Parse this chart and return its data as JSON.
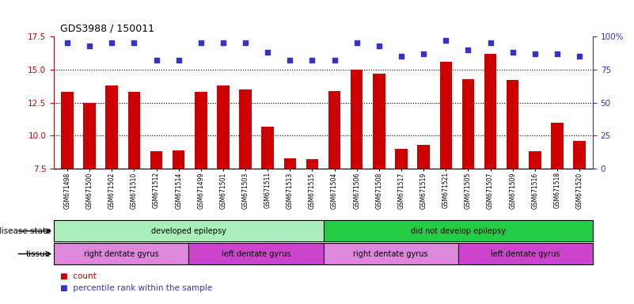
{
  "title": "GDS3988 / 150011",
  "samples": [
    "GSM671498",
    "GSM671500",
    "GSM671502",
    "GSM671510",
    "GSM671512",
    "GSM671514",
    "GSM671499",
    "GSM671501",
    "GSM671503",
    "GSM671511",
    "GSM671513",
    "GSM671515",
    "GSM671504",
    "GSM671506",
    "GSM671508",
    "GSM671517",
    "GSM671519",
    "GSM671521",
    "GSM671505",
    "GSM671507",
    "GSM671509",
    "GSM671516",
    "GSM671518",
    "GSM671520"
  ],
  "bar_values_left": [
    13.3,
    12.5,
    13.8,
    13.3,
    8.8,
    8.9,
    13.3,
    13.8,
    13.5,
    10.7,
    8.3,
    8.2,
    13.4,
    15.0,
    14.7,
    9.0,
    9.3,
    15.6,
    14.3,
    16.2,
    14.2,
    8.8,
    11.0,
    9.6
  ],
  "percentile_right": [
    95,
    93,
    95,
    95,
    82,
    82,
    95,
    95,
    95,
    88,
    82,
    82,
    82,
    95,
    93,
    85,
    87,
    97,
    90,
    95,
    88,
    87,
    87,
    85
  ],
  "ylim_left": [
    7.5,
    17.5
  ],
  "ylim_right": [
    0,
    100
  ],
  "yticks_left": [
    7.5,
    10.0,
    12.5,
    15.0,
    17.5
  ],
  "yticks_right": [
    0,
    25,
    50,
    75,
    100
  ],
  "bar_color": "#cc0000",
  "dot_color": "#3333cc",
  "disease_state_groups": [
    {
      "label": "developed epilepsy",
      "start": 0,
      "end": 12,
      "color": "#aaeebb"
    },
    {
      "label": "did not develop epilepsy",
      "start": 12,
      "end": 24,
      "color": "#22cc44"
    }
  ],
  "tissue_groups": [
    {
      "label": "right dentate gyrus",
      "start": 0,
      "end": 6,
      "color": "#dd88dd"
    },
    {
      "label": "left dentate gyrus",
      "start": 6,
      "end": 12,
      "color": "#cc44cc"
    },
    {
      "label": "right dentate gyrus",
      "start": 12,
      "end": 18,
      "color": "#dd88dd"
    },
    {
      "label": "left dentate gyrus",
      "start": 18,
      "end": 24,
      "color": "#cc44cc"
    }
  ]
}
